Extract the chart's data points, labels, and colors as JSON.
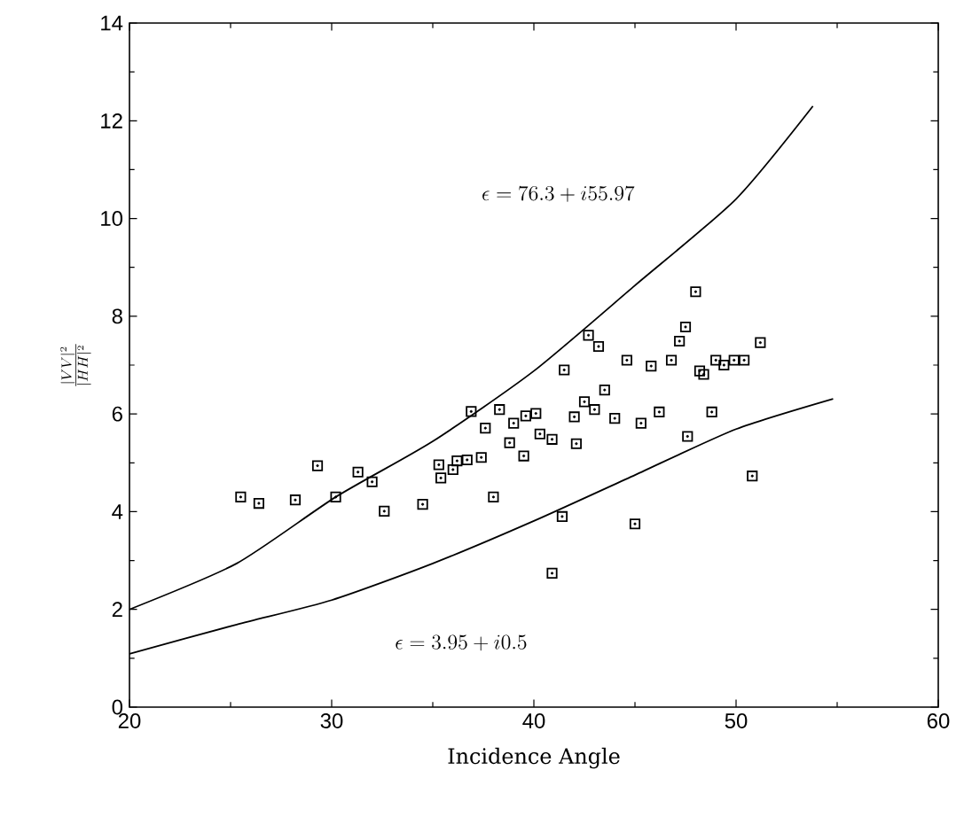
{
  "chart_data": {
    "type": "scatter",
    "xlabel": "Incidence Angle",
    "ylabel": "\\frac{|VV|^2}{|HH|^2}",
    "xlim": [
      20,
      60
    ],
    "ylim": [
      0,
      14
    ],
    "xticks": [
      20,
      30,
      40,
      50,
      60
    ],
    "yticks": [
      0,
      2,
      4,
      6,
      8,
      10,
      12,
      14
    ],
    "grid": false,
    "annotations": [
      "\\epsilon = 76.3 + i55.97",
      "\\epsilon = 3.95 + i0.5"
    ],
    "series": [
      {
        "color": "#000000",
        "marker": "square",
        "x": [
          25.5,
          26.4,
          28.2,
          29.3,
          30.2,
          31.3,
          32.0,
          32.6,
          34.5,
          35.3,
          35.4,
          36.0,
          36.2,
          36.7,
          37.4,
          36.9,
          37.6,
          38.0,
          38.3,
          38.8,
          39.0,
          39.5,
          39.6,
          40.1,
          40.3,
          40.9,
          40.9,
          41.4,
          41.5,
          42.0,
          42.1,
          42.5,
          42.7,
          43.0,
          43.2,
          43.5,
          44.0,
          44.6,
          45.0,
          45.3,
          45.8,
          46.2,
          46.8,
          47.2,
          47.5,
          47.6,
          48.0,
          48.2,
          48.4,
          48.8,
          49.0,
          49.4,
          49.9,
          50.4,
          50.8,
          51.2
        ],
        "values": [
          4.3,
          4.17,
          4.24,
          4.94,
          4.3,
          4.81,
          4.61,
          4.01,
          4.15,
          4.96,
          4.69,
          4.86,
          5.04,
          5.06,
          5.11,
          6.05,
          5.71,
          4.3,
          6.09,
          5.41,
          5.81,
          5.14,
          5.96,
          6.01,
          5.59,
          5.48,
          2.74,
          3.9,
          6.9,
          5.94,
          5.39,
          6.25,
          7.61,
          6.09,
          7.38,
          6.49,
          5.91,
          7.1,
          3.75,
          5.81,
          6.98,
          6.04,
          7.1,
          7.49,
          7.78,
          5.54,
          8.5,
          6.88,
          6.81,
          6.04,
          7.1,
          7.0,
          7.1,
          7.1,
          4.73,
          7.46
        ]
      },
      {
        "type": "line",
        "color": "#000000",
        "marker": "none",
        "line_style": "solid",
        "x": [
          20,
          25.3,
          30.2,
          35,
          40,
          45,
          50,
          53.8
        ],
        "values": [
          2.0,
          2.94,
          4.3,
          5.44,
          6.88,
          8.63,
          10.4,
          12.3
        ]
      },
      {
        "type": "line",
        "color": "#000000",
        "marker": "none",
        "line_style": "solid",
        "x": [
          20,
          25.3,
          30,
          35,
          40,
          45,
          50,
          54.8
        ],
        "values": [
          1.09,
          1.69,
          2.19,
          2.94,
          3.81,
          4.75,
          5.69,
          6.31
        ]
      }
    ]
  }
}
